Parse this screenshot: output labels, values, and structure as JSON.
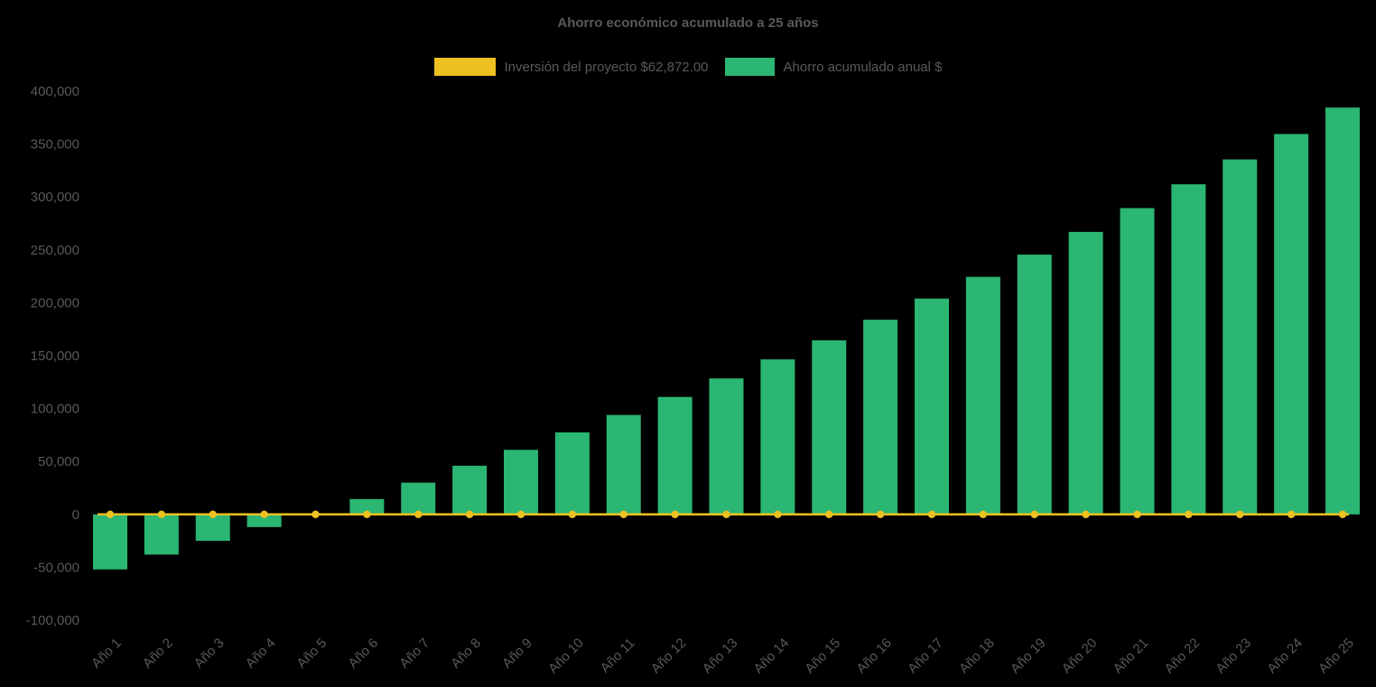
{
  "page": {
    "background_color": "#000000",
    "text_color": "#595959"
  },
  "chart_data": {
    "type": "bar",
    "title": "Ahorro económico acumulado a 25 años",
    "xlabel": "",
    "ylabel": "",
    "ylim": [
      -100000,
      400000
    ],
    "ytick_step": 50000,
    "grid": false,
    "legend_position": "top",
    "categories": [
      "Año 1",
      "Año 2",
      "Año 3",
      "Año 4",
      "Año 5",
      "Año 6",
      "Año 7",
      "Año 8",
      "Año 9",
      "Año 10",
      "Año 11",
      "Año 12",
      "Año 13",
      "Año 14",
      "Año 15",
      "Año 16",
      "Año 17",
      "Año 18",
      "Año 19",
      "Año 20",
      "Año 21",
      "Año 22",
      "Año 23",
      "Año 24",
      "Año 25"
    ],
    "series": [
      {
        "name": "Inversión del proyecto $62,872.00",
        "type": "line",
        "color": "#EDC120",
        "marker": "circle",
        "values": [
          0,
          0,
          0,
          0,
          0,
          0,
          0,
          0,
          0,
          0,
          0,
          0,
          0,
          0,
          0,
          0,
          0,
          0,
          0,
          0,
          0,
          0,
          0,
          0,
          0
        ]
      },
      {
        "name": "Ahorro acumulado anual $",
        "type": "bar",
        "color": "#2BB673",
        "values": [
          -52000,
          -38000,
          -25000,
          -12000,
          1000,
          14500,
          30000,
          46000,
          61000,
          77500,
          94000,
          111000,
          128500,
          146500,
          164500,
          184000,
          204000,
          224500,
          245500,
          267000,
          289500,
          312000,
          335500,
          359500,
          384500
        ]
      }
    ]
  }
}
